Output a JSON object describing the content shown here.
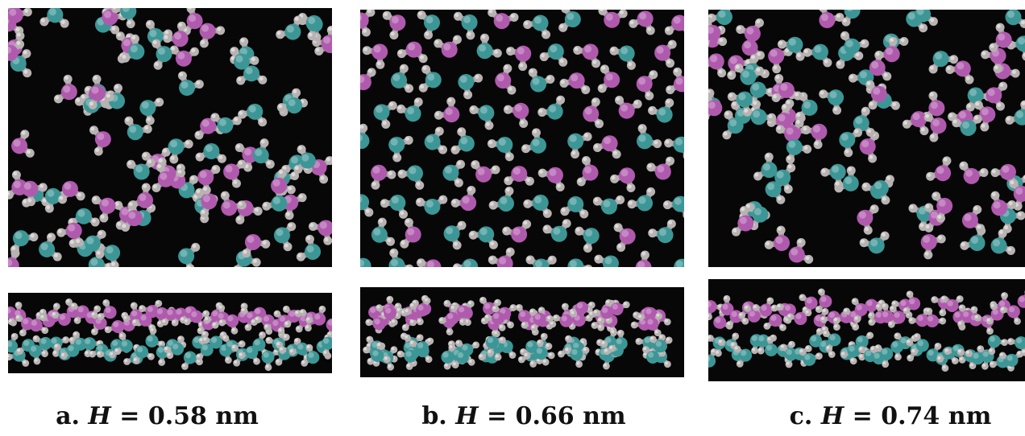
{
  "figure": {
    "panels": [
      {
        "id": "a",
        "letter": "a.",
        "variable": "H",
        "equals": "=",
        "value": "0.58",
        "unit": "nm",
        "top_view_pattern": "disordered",
        "side_view_pattern": "two-layer-dense"
      },
      {
        "id": "b",
        "letter": "b.",
        "variable": "H",
        "equals": "=",
        "value": "0.66",
        "unit": "nm",
        "top_view_pattern": "ordered-lattice",
        "side_view_pattern": "two-layer-clustered"
      },
      {
        "id": "c",
        "letter": "c.",
        "variable": "H",
        "equals": "=",
        "value": "0.74",
        "unit": "nm",
        "top_view_pattern": "disordered",
        "side_view_pattern": "two-layer-thick"
      }
    ],
    "colors": {
      "background": "#070707",
      "oxygen_upper_layer": "#b05aae",
      "oxygen_lower_layer": "#3d9696",
      "hydrogen": "#b8b2b2",
      "caption_text": "#111111"
    }
  }
}
